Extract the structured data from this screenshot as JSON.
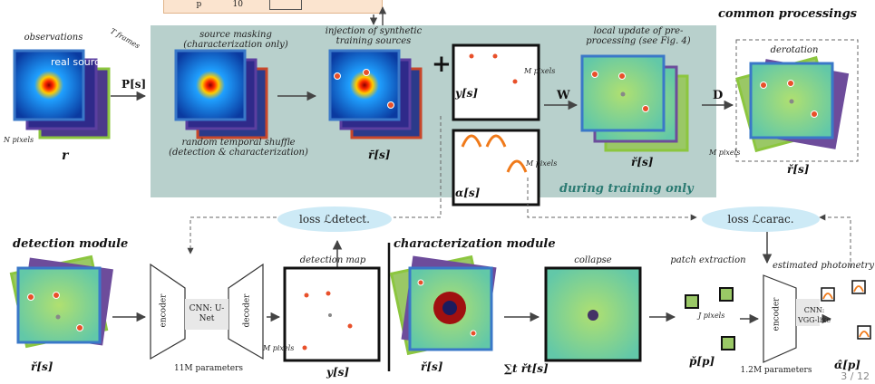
{
  "panel": {
    "common_title": "common processings",
    "training_only": "during training only"
  },
  "top_strip": {
    "text": "           p            10"
  },
  "labels": {
    "observations": "observations",
    "t_frames": "T frames",
    "real_source": "real source",
    "n_pixels": "N pixels",
    "source_masking": "source masking (characterization only)",
    "random_shuffle": "random temporal shuffle (detection & characterization)",
    "injection": "injection of synthetic training sources",
    "m_pixels_1": "M pixels",
    "m_pixels_2": "M pixels",
    "local_update": "local update of pre-processing (see Fig. 4)",
    "derotation": "derotation",
    "m_pixels_3": "M pixels",
    "detection_module": "detection module",
    "characterization_module": "characterization module",
    "encoder": "encoder",
    "decoder": "decoder",
    "cnn_unet": "CNN: U-Net",
    "params_11m": "11M parameters",
    "detection_map": "detection map",
    "m_pixels_4": "M pixels",
    "collapse": "collapse",
    "patch_extraction": "patch extraction",
    "j_pixels": "J pixels",
    "estimated_photometry": "estimated photometry",
    "encoder2": "encoder",
    "cnn_vgg": "CNN: VGG-like",
    "params_1_2m": "1.2M parameters",
    "loss_detect": "loss ℒdetect.",
    "loss_carac": "loss ℒcarac.",
    "page": "3 / 12"
  },
  "math": {
    "r": "r",
    "P": "P[s]",
    "r_bar": "r̄[s]",
    "plus": "+",
    "y_s": "y[s]",
    "alpha_s": "α[s]",
    "W": "W",
    "r_check": "ř[s]",
    "D": "D",
    "r_check2": "ř[s]",
    "r_check3": "ř[s]",
    "y_s2": "y[s]",
    "r_check4": "ř[s]",
    "sum": "∑t řt[s]",
    "p_check": "p̌[p]",
    "alpha_hat": "α̂[p]"
  },
  "colors": {
    "panel": "#b8d0cc",
    "frame_blue": "#3a78c8",
    "frame_green": "#8cc63f",
    "frame_purple": "#6d4c9b",
    "source": "#e8502a",
    "loss_bg": "#cdeaf6"
  }
}
